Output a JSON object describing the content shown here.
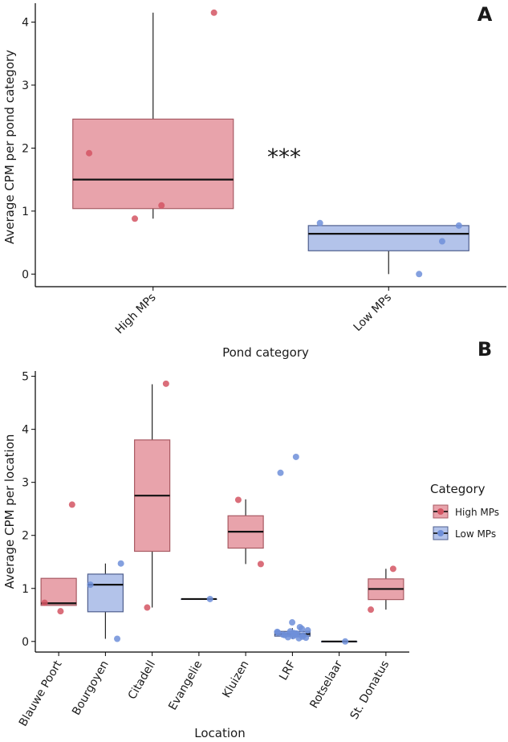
{
  "colors": {
    "high_fill": "#E8A3AB",
    "high_stroke": "#A85A63",
    "high_point": "#D45563",
    "low_fill": "#B3C3EA",
    "low_stroke": "#4F5F8E",
    "low_point": "#6F8FD9"
  },
  "chart_data": [
    {
      "panel_label": "A",
      "type": "box",
      "xlabel": "Pond category",
      "ylabel": "Average CPM per pond category",
      "ylim": [
        -0.2,
        4.3
      ],
      "yticks": [
        "0",
        "1",
        "2",
        "3",
        "4"
      ],
      "significance": "***",
      "categories": [
        "High MPs",
        "Low MPs"
      ],
      "boxes": [
        {
          "category": "High MPs",
          "group": "high",
          "q1": 1.04,
          "median": 1.5,
          "q3": 2.46,
          "whisker_low": 0.88,
          "whisker_high": 4.15,
          "points": [
            4.15,
            1.92,
            1.09,
            0.88
          ]
        },
        {
          "category": "Low MPs",
          "group": "low",
          "q1": 0.37,
          "median": 0.64,
          "q3": 0.77,
          "whisker_low": 0.0,
          "whisker_high": 0.77,
          "points": [
            0.77,
            0.81,
            0.52,
            0.0
          ]
        }
      ]
    },
    {
      "panel_label": "B",
      "type": "box",
      "xlabel": "Location",
      "ylabel": "Average CPM per location",
      "ylim": [
        -0.2,
        5.1
      ],
      "yticks": [
        "0",
        "1",
        "2",
        "3",
        "4",
        "5"
      ],
      "categories": [
        "Blauwe Poort",
        "Bourgoyen",
        "Citadell",
        "Evangelie",
        "Kluizen",
        "LRF",
        "Rotselaar",
        "St. Donatus"
      ],
      "legend": {
        "title": "Category",
        "entries": [
          "High MPs",
          "Low MPs"
        ],
        "position": "right"
      },
      "boxes": [
        {
          "category": "Blauwe Poort",
          "group": "high",
          "q1": 0.68,
          "median": 0.72,
          "q3": 1.19,
          "whisker_low": 0.68,
          "whisker_high": 1.19,
          "points": [
            2.58,
            0.73,
            0.57
          ]
        },
        {
          "category": "Bourgoyen",
          "group": "low",
          "q1": 0.56,
          "median": 1.07,
          "q3": 1.27,
          "whisker_low": 0.05,
          "whisker_high": 1.47,
          "points": [
            1.47,
            1.07,
            0.05
          ]
        },
        {
          "category": "Citadell",
          "group": "high",
          "q1": 1.7,
          "median": 2.75,
          "q3": 3.8,
          "whisker_low": 0.64,
          "whisker_high": 4.85,
          "points": [
            4.86,
            0.64
          ]
        },
        {
          "category": "Evangelie",
          "group": "low",
          "q1": 0.8,
          "median": 0.8,
          "q3": 0.8,
          "whisker_low": 0.8,
          "whisker_high": 0.8,
          "points": [
            0.8
          ]
        },
        {
          "category": "Kluizen",
          "group": "high",
          "q1": 1.76,
          "median": 2.07,
          "q3": 2.37,
          "whisker_low": 1.46,
          "whisker_high": 2.68,
          "points": [
            2.67,
            1.46
          ]
        },
        {
          "category": "LRF",
          "group": "low",
          "q1": 0.1,
          "median": 0.14,
          "q3": 0.19,
          "whisker_low": 0.05,
          "whisker_high": 0.25,
          "points": [
            3.48,
            3.18,
            0.36,
            0.27,
            0.24,
            0.21,
            0.19,
            0.18,
            0.16,
            0.15,
            0.14,
            0.13,
            0.12,
            0.11,
            0.1,
            0.09,
            0.08,
            0.07,
            0.06,
            0.13,
            0.17,
            0.12
          ]
        },
        {
          "category": "Rotselaar",
          "group": "low",
          "q1": 0.0,
          "median": 0.0,
          "q3": 0.0,
          "whisker_low": 0.0,
          "whisker_high": 0.0,
          "points": [
            0.0
          ]
        },
        {
          "category": "St. Donatus",
          "group": "high",
          "q1": 0.79,
          "median": 0.99,
          "q3": 1.18,
          "whisker_low": 0.6,
          "whisker_high": 1.37,
          "points": [
            1.37,
            0.6
          ]
        }
      ]
    }
  ]
}
